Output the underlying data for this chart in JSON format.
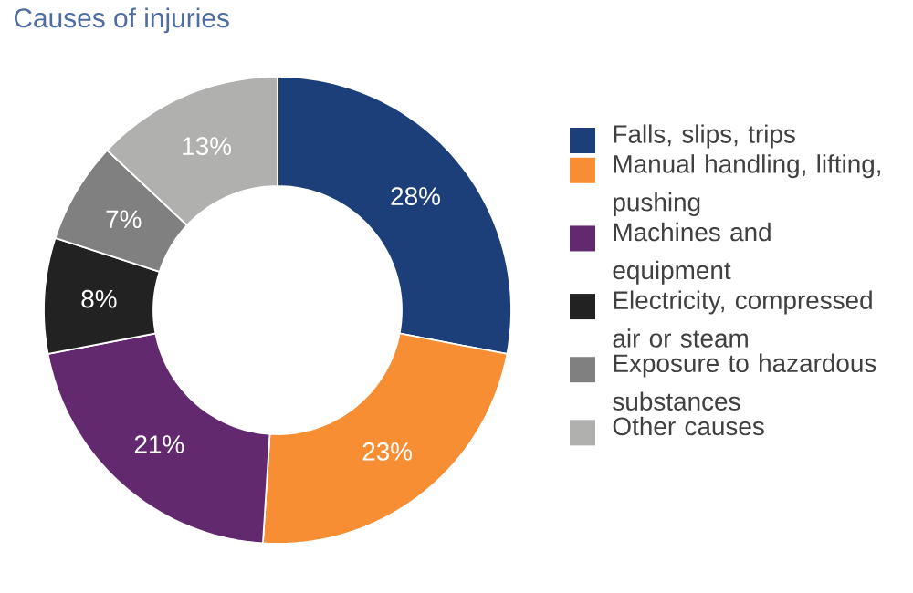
{
  "chart_data": {
    "type": "donut",
    "title": "Causes of injuries",
    "categories": [
      "Falls, slips, trips",
      "Manual handling, lifting, pushing",
      "Machines and equipment",
      "Electricity, compressed air or steam",
      "Exposure to hazardous substances",
      "Other causes"
    ],
    "values": [
      28,
      23,
      21,
      8,
      7,
      13
    ],
    "colors": [
      "#1c3f7a",
      "#f78e34",
      "#62296f",
      "#222222",
      "#7f807f",
      "#b0b0af"
    ],
    "value_labels": [
      "28%",
      "23%",
      "21%",
      "8%",
      "7%",
      "13%"
    ],
    "legend": "right"
  }
}
